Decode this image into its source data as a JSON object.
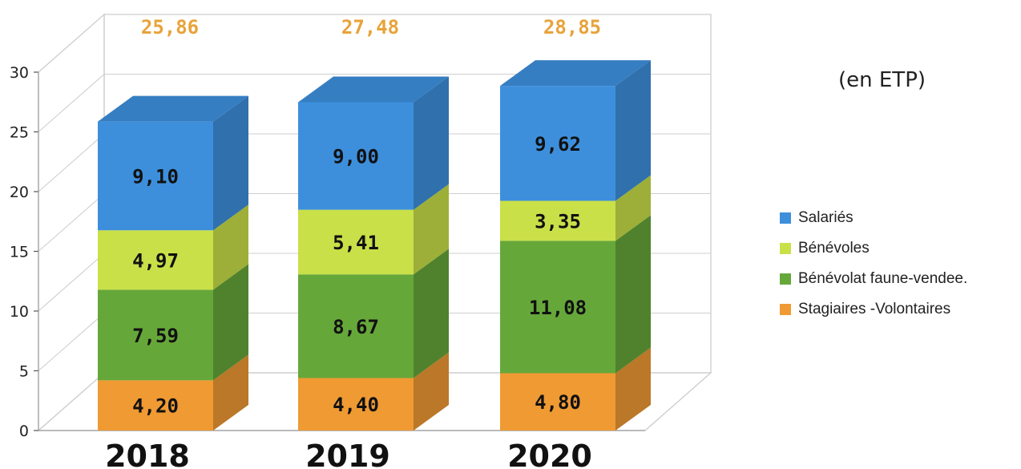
{
  "chart_data": {
    "type": "bar",
    "stacked": true,
    "three_d": true,
    "categories": [
      "2018",
      "2019",
      "2020"
    ],
    "series": [
      {
        "name": "Stagiaires -Volontaires",
        "color": "#ef9a33",
        "values": [
          4.2,
          4.4,
          4.8
        ],
        "labels": [
          "4,20",
          "4,40",
          "4,80"
        ]
      },
      {
        "name": "Bénévolat faune-vendee.",
        "color": "#66a73a",
        "values": [
          7.59,
          8.67,
          11.08
        ],
        "labels": [
          "7,59",
          "8,67",
          "11,08"
        ]
      },
      {
        "name": "Bénévoles",
        "color": "#c9e048",
        "values": [
          4.97,
          5.41,
          3.35
        ],
        "labels": [
          "4,97",
          "5,41",
          "3,35"
        ]
      },
      {
        "name": "Salariés",
        "color": "#3d8fdc",
        "values": [
          9.1,
          9.0,
          9.62
        ],
        "labels": [
          "9,10",
          "9,00",
          "9,62"
        ]
      }
    ],
    "totals": [
      "25,86",
      "27,48",
      "28,85"
    ],
    "total_color": "#e8a33a",
    "ylim": [
      0,
      30
    ],
    "yticks": [
      0,
      5,
      10,
      15,
      20,
      25,
      30
    ],
    "grid": true,
    "legend_position": "right",
    "unit_label": "(en ETP)"
  }
}
